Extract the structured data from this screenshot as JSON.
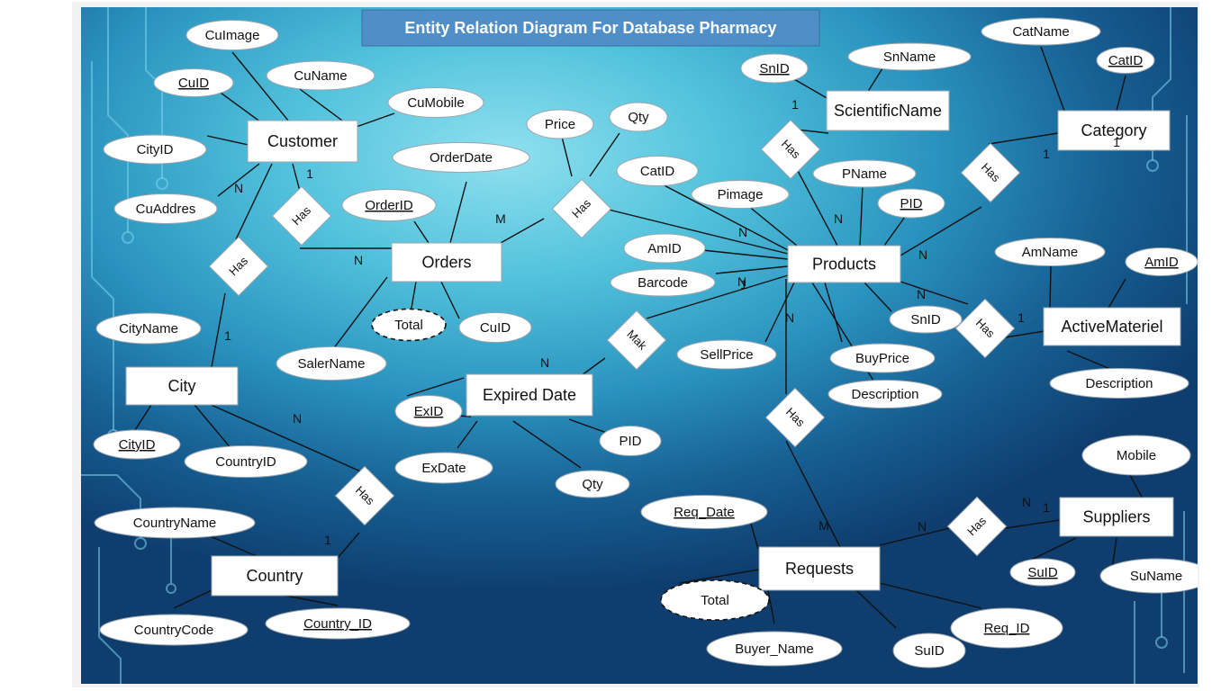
{
  "title": "Entity Relation Diagram For Database Pharmacy",
  "entities": [
    {
      "id": "customer",
      "label": "Customer"
    },
    {
      "id": "orders",
      "label": "Orders"
    },
    {
      "id": "products",
      "label": "Products"
    },
    {
      "id": "category",
      "label": "Category"
    },
    {
      "id": "scientificname",
      "label": "ScientificName"
    },
    {
      "id": "city",
      "label": "City"
    },
    {
      "id": "country",
      "label": "Country"
    },
    {
      "id": "expired",
      "label": "Expired Date"
    },
    {
      "id": "requests",
      "label": "Requests"
    },
    {
      "id": "suppliers",
      "label": "Suppliers"
    },
    {
      "id": "activemateriel",
      "label": "ActiveMateriel"
    }
  ],
  "attributes": [
    {
      "id": "cuimage",
      "label": "CuImage"
    },
    {
      "id": "cuid",
      "label": "CuID",
      "key": true
    },
    {
      "id": "cuname",
      "label": "CuName"
    },
    {
      "id": "cumobile",
      "label": "CuMobile"
    },
    {
      "id": "cityid1",
      "label": "CityID"
    },
    {
      "id": "cuaddres",
      "label": "CuAddres"
    },
    {
      "id": "orderdate",
      "label": "OrderDate"
    },
    {
      "id": "orderid",
      "label": "OrderID",
      "key": true
    },
    {
      "id": "total1",
      "label": "Total",
      "derived": true
    },
    {
      "id": "cuid2",
      "label": "CuID"
    },
    {
      "id": "salername",
      "label": "SalerName"
    },
    {
      "id": "price",
      "label": "Price"
    },
    {
      "id": "qty1",
      "label": "Qty"
    },
    {
      "id": "catid1",
      "label": "CatID"
    },
    {
      "id": "pimage",
      "label": "Pimage"
    },
    {
      "id": "amid1",
      "label": "AmID"
    },
    {
      "id": "barcode",
      "label": "Barcode"
    },
    {
      "id": "pname",
      "label": "PName"
    },
    {
      "id": "pid1",
      "label": "PID",
      "key": true
    },
    {
      "id": "snid1",
      "label": "SnID",
      "key": true
    },
    {
      "id": "snname",
      "label": "SnName"
    },
    {
      "id": "catname",
      "label": "CatName"
    },
    {
      "id": "catid2",
      "label": "CatID",
      "key": true
    },
    {
      "id": "snid2",
      "label": "SnID"
    },
    {
      "id": "sellprice",
      "label": "SellPrice"
    },
    {
      "id": "buyprice",
      "label": "BuyPrice"
    },
    {
      "id": "desc1",
      "label": "Description"
    },
    {
      "id": "amname",
      "label": "AmName"
    },
    {
      "id": "amid2",
      "label": "AmID",
      "key": true
    },
    {
      "id": "desc2",
      "label": "Description"
    },
    {
      "id": "cityname",
      "label": "CityName"
    },
    {
      "id": "cityid2",
      "label": "CityID",
      "key": true
    },
    {
      "id": "countryid",
      "label": "CountryID"
    },
    {
      "id": "countryname",
      "label": "CountryName"
    },
    {
      "id": "countrycode",
      "label": "CountryCode"
    },
    {
      "id": "country_id",
      "label": "Country_ID",
      "key": true
    },
    {
      "id": "exid",
      "label": "ExID",
      "key": true
    },
    {
      "id": "exdate",
      "label": "ExDate"
    },
    {
      "id": "pid2",
      "label": "PID"
    },
    {
      "id": "qty2",
      "label": "Qty"
    },
    {
      "id": "req_date",
      "label": "Req_Date",
      "key": true
    },
    {
      "id": "total2",
      "label": "Total",
      "derived": true
    },
    {
      "id": "buyer_name",
      "label": "Buyer_Name"
    },
    {
      "id": "suid1",
      "label": "SuID"
    },
    {
      "id": "req_id",
      "label": "Req_ID",
      "key": true
    },
    {
      "id": "mobile",
      "label": "Mobile"
    },
    {
      "id": "suid2",
      "label": "SuID",
      "key": true
    },
    {
      "id": "suname",
      "label": "SuName"
    }
  ],
  "relationships": [
    {
      "id": "has_cust_orders",
      "label": "Has"
    },
    {
      "id": "has_cust_city",
      "label": "Has"
    },
    {
      "id": "has_orders_products",
      "label": "Has"
    },
    {
      "id": "has_products_sci",
      "label": "Has"
    },
    {
      "id": "has_products_cat",
      "label": "Has"
    },
    {
      "id": "has_products_am",
      "label": "Has"
    },
    {
      "id": "mak_products_exp",
      "label": "Mak"
    },
    {
      "id": "has_products_req",
      "label": "Has"
    },
    {
      "id": "has_city_country",
      "label": "Has"
    },
    {
      "id": "has_req_sup",
      "label": "Has"
    }
  ],
  "cardinalities": [
    "N",
    "1",
    "N",
    "M",
    "N",
    "N",
    "1",
    "1",
    "N",
    "N",
    "N",
    "1",
    "1",
    "N",
    "N",
    "1",
    "N",
    "1",
    "1",
    "N",
    "M",
    "N",
    "1"
  ]
}
